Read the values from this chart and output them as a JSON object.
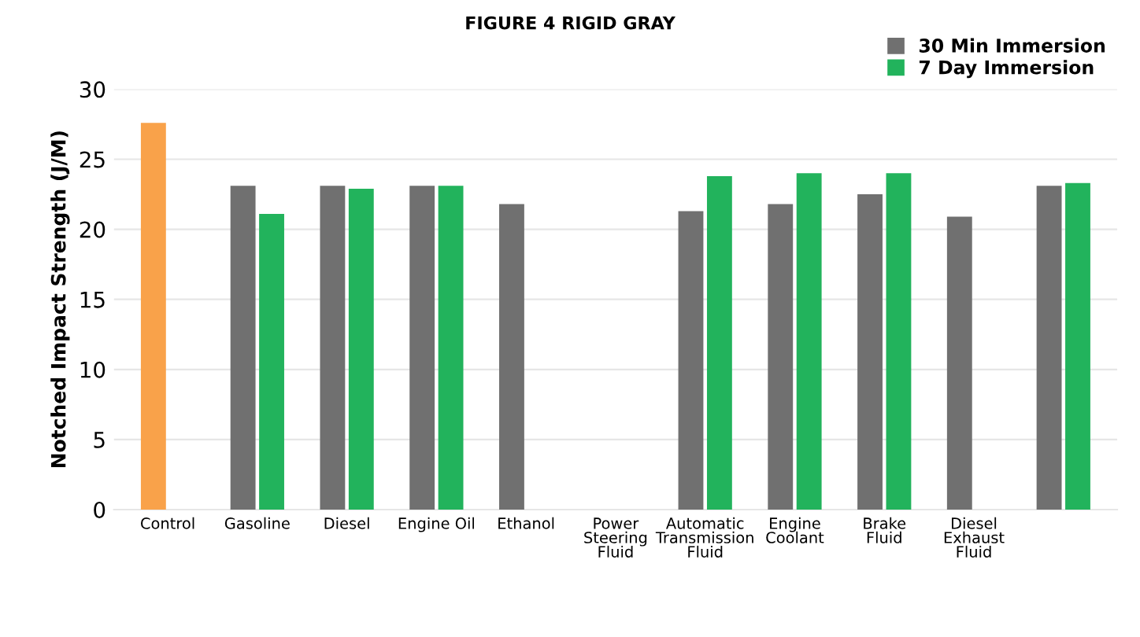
{
  "chart_data": {
    "type": "bar",
    "title": "FIGURE 4 RIGID GRAY",
    "ylabel": "Notched Impact Strength (J/M)",
    "categories": [
      "Control",
      "Gasoline",
      "Diesel",
      "Engine Oil",
      "Ethanol",
      "Power\nSteering\nFluid",
      "Automatic\nTransmission\nFluid",
      "Engine\nCoolant",
      "Brake\nFluid",
      "Diesel\nExhaust\nFluid",
      null
    ],
    "series": [
      {
        "name": "30 Min Immersion",
        "color": "#707070",
        "colors": [
          "#f9a24a",
          "#707070",
          "#707070",
          "#707070",
          "#707070",
          "#707070",
          "#707070",
          "#707070",
          "#707070",
          "#707070",
          "#707070"
        ],
        "values": [
          27.6,
          23.1,
          23.1,
          23.1,
          21.8,
          null,
          21.3,
          21.8,
          22.5,
          20.9,
          23.1
        ]
      },
      {
        "name": "7 Day Immersion",
        "color": "#22b35c",
        "values": [
          null,
          21.1,
          22.9,
          23.1,
          null,
          null,
          23.8,
          24.0,
          24.0,
          null,
          23.3
        ]
      }
    ],
    "ylim": [
      0,
      30
    ],
    "yticks": [
      0,
      5,
      10,
      15,
      20,
      25,
      30
    ],
    "grid": "y",
    "legend": "top right"
  }
}
